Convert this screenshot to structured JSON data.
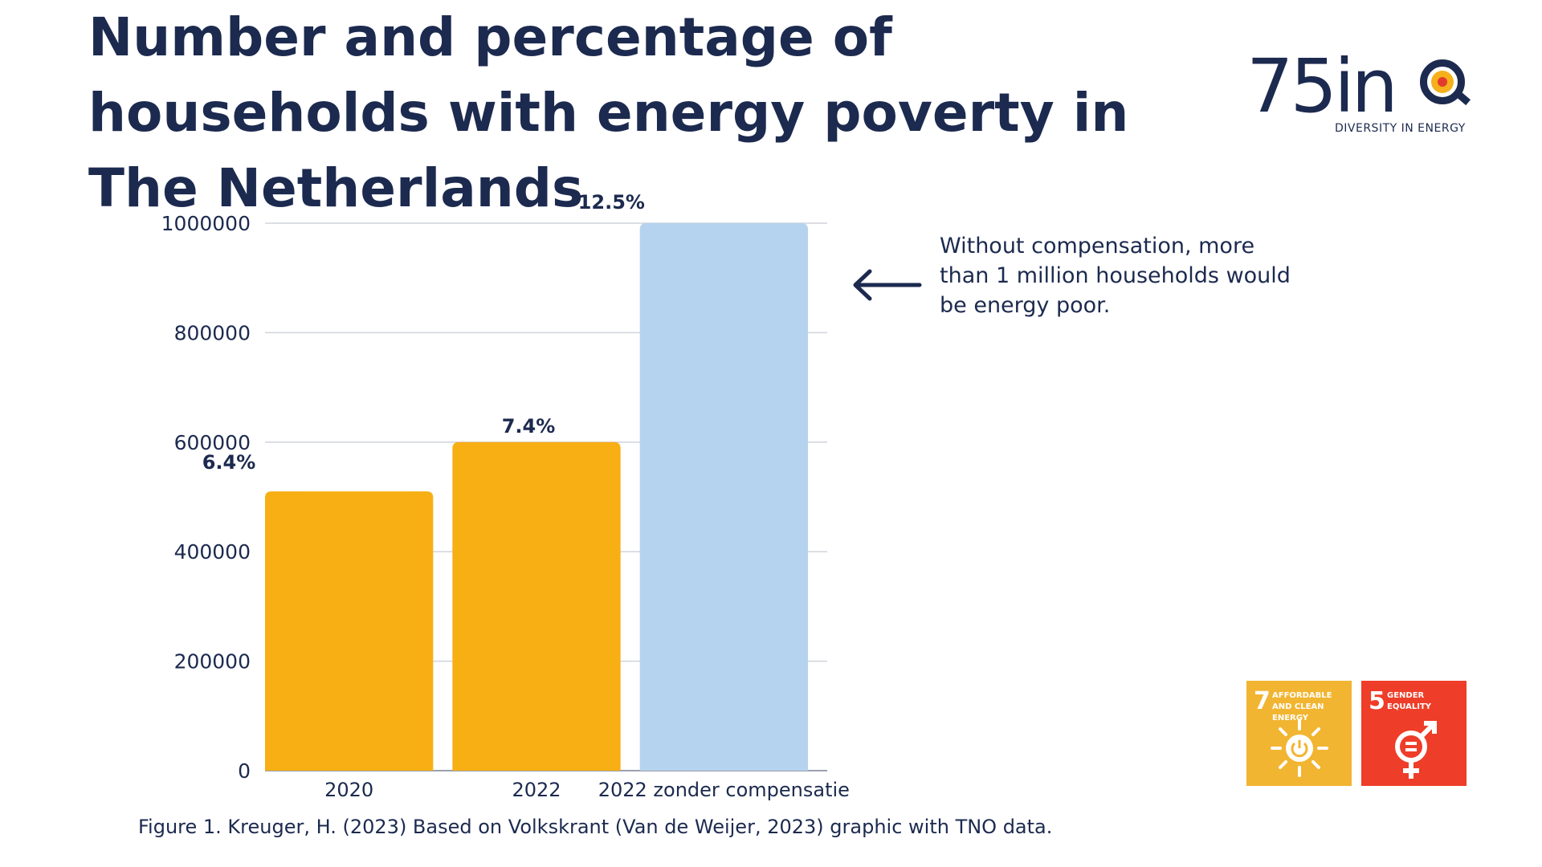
{
  "header": {
    "title": "Number and percentage of households with energy poverty in The Netherlands"
  },
  "logo": {
    "text": "75in",
    "subtitle": "DIVERSITY IN ENERGY",
    "colors": {
      "navy": "#1c2a4f",
      "yellow": "#f5b01b",
      "red": "#e23b2e"
    }
  },
  "chart_data": {
    "type": "bar",
    "categories": [
      "2020",
      "2022",
      "2022 zonder compensatie"
    ],
    "values": [
      510000,
      600000,
      1000000
    ],
    "data_labels": [
      "6.4%",
      "7.4%",
      "12.5%"
    ],
    "colors": [
      "#f8af13",
      "#f8af13",
      "#b5d3ee"
    ],
    "yticks": [
      0,
      200000,
      400000,
      600000,
      800000,
      1000000
    ],
    "ytick_labels": [
      "0",
      "200000",
      "400000",
      "600000",
      "800000",
      "1000000"
    ],
    "ylim": [
      0,
      1000000
    ],
    "grid": true,
    "xlabel": "",
    "ylabel": ""
  },
  "annotation": {
    "text": "Without compensation, more than 1 million households would be energy poor.",
    "icon": "arrow-left-icon"
  },
  "caption": "Figure 1. Kreuger, H. (2023) Based on Volkskrant (Van de Weijer, 2023) graphic with TNO data.",
  "sdg_badges": [
    {
      "number": "7",
      "label": "AFFORDABLE AND CLEAN ENERGY",
      "color": "#f2b531",
      "icon": "sun-power-icon"
    },
    {
      "number": "5",
      "label": "GENDER EQUALITY",
      "color": "#ee3d28",
      "icon": "gender-equality-icon"
    }
  ]
}
